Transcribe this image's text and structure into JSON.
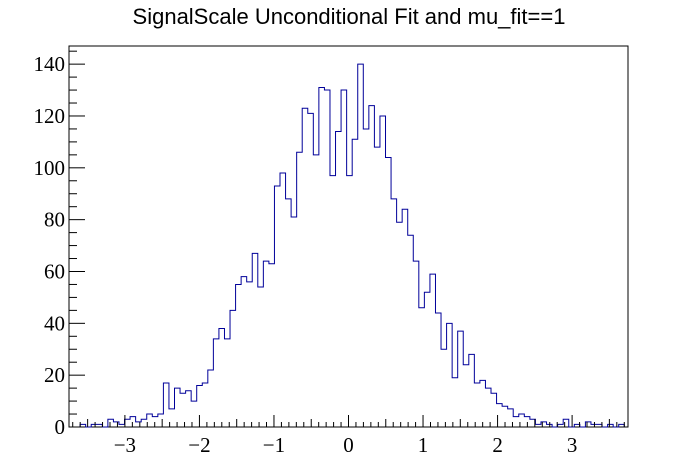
{
  "chart_data": {
    "type": "bar",
    "title": "SignalScale Unconditional Fit and mu_fit==1",
    "xlabel": "",
    "ylabel": "",
    "xlim": [
      -3.75,
      3.75
    ],
    "ylim": [
      0,
      147
    ],
    "bin_start": -3.75,
    "bin_width": 0.0745,
    "values": [
      0,
      0,
      1,
      0,
      1,
      1,
      0,
      3,
      2,
      1,
      3,
      4,
      2,
      3,
      5,
      4,
      5,
      17,
      7,
      15,
      13,
      14,
      10,
      16,
      17,
      22,
      34,
      38,
      34,
      45,
      55,
      58,
      56,
      67,
      54,
      64,
      63,
      93,
      98,
      88,
      81,
      106,
      123,
      121,
      105,
      131,
      130,
      97,
      114,
      130,
      97,
      111,
      140,
      115,
      124,
      108,
      120,
      104,
      88,
      79,
      84,
      74,
      64,
      46,
      52,
      59,
      44,
      30,
      40,
      19,
      37,
      24,
      28,
      17,
      18,
      15,
      13,
      9,
      8,
      7,
      4,
      5,
      4,
      3,
      1,
      2,
      1,
      0,
      1,
      3,
      0,
      1,
      0,
      2,
      1,
      1,
      0,
      1,
      0,
      1
    ],
    "x_ticks": [
      -3,
      -2,
      -1,
      0,
      1,
      2,
      3
    ],
    "x_tick_labels": [
      "−3",
      "−2",
      "−1",
      "0",
      "1",
      "2",
      "3"
    ],
    "y_ticks": [
      0,
      20,
      40,
      60,
      80,
      100,
      120,
      140
    ],
    "y_tick_labels": [
      "0",
      "20",
      "40",
      "60",
      "80",
      "100",
      "120",
      "140"
    ],
    "line_color": "#000099",
    "grid": false,
    "legend": "none"
  }
}
